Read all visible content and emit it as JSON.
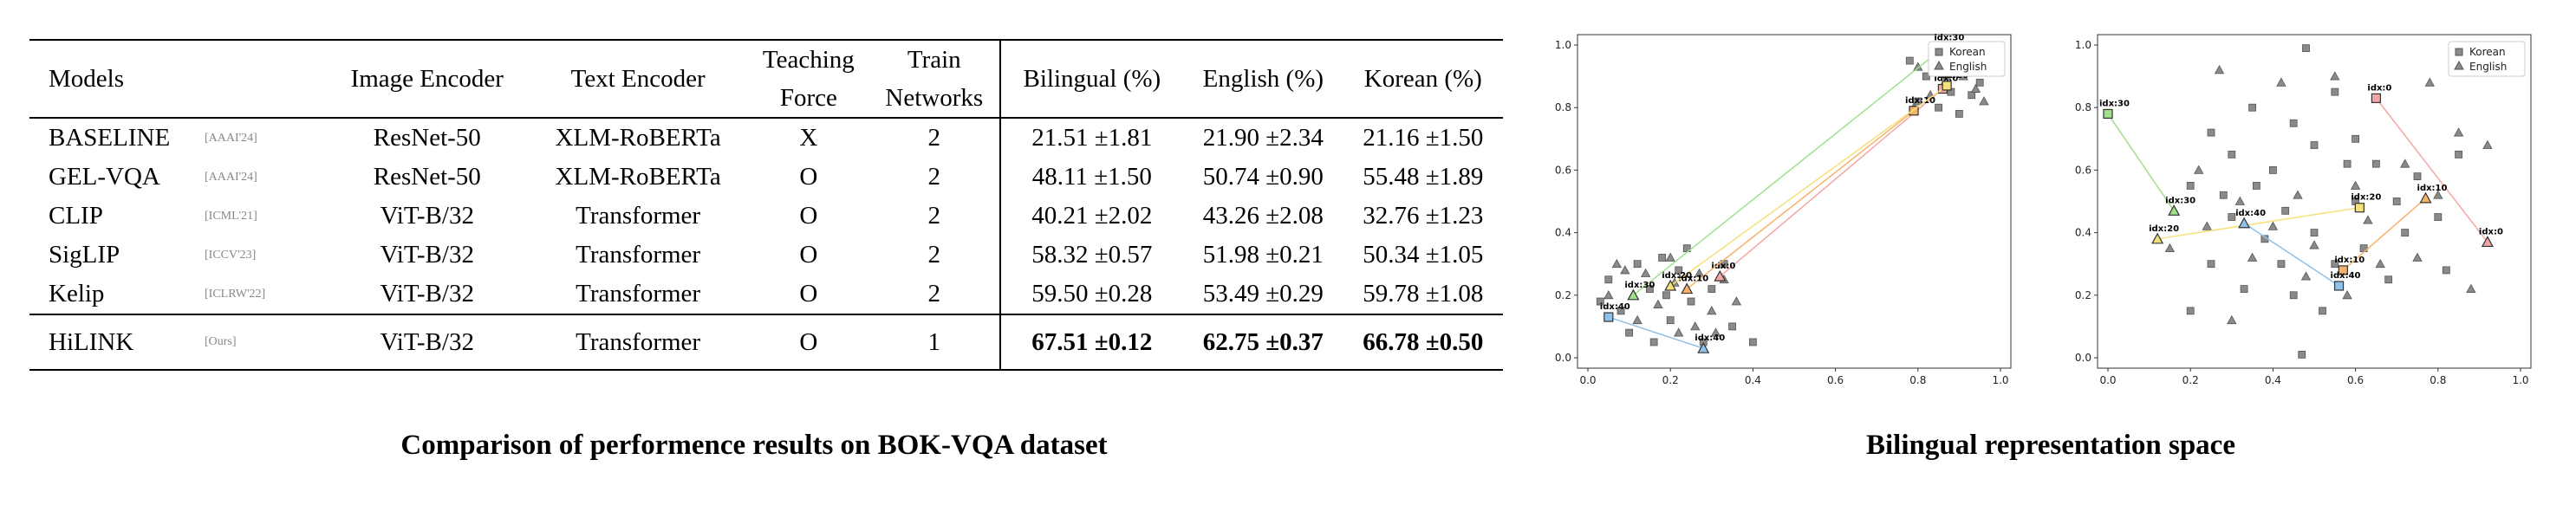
{
  "table": {
    "headers": {
      "models": "Models",
      "image_encoder": "Image Encoder",
      "text_encoder": "Text Encoder",
      "teaching_l1": "Teaching",
      "teaching_l2": "Force",
      "train_l1": "Train",
      "train_l2": "Networks",
      "bilingual": "Bilingual (%)",
      "english": "English (%)",
      "korean": "Korean (%)"
    },
    "rows": [
      {
        "model": "BASELINE",
        "venue": "[AAAI'24]",
        "image": "ResNet-50",
        "text": "XLM-RoBERTa",
        "teach": "X",
        "train": "2",
        "bi": "21.51 ±1.81",
        "en": "21.90 ±2.34",
        "ko": "21.16 ±1.50"
      },
      {
        "model": "GEL-VQA",
        "venue": "[AAAI'24]",
        "image": "ResNet-50",
        "text": "XLM-RoBERTa",
        "teach": "O",
        "train": "2",
        "bi": "48.11 ±1.50",
        "en": "50.74 ±0.90",
        "ko": "55.48 ±1.89"
      },
      {
        "model": "CLIP",
        "venue": "[ICML'21]",
        "image": "ViT-B/32",
        "text": "Transformer",
        "teach": "O",
        "train": "2",
        "bi": "40.21 ±2.02",
        "en": "43.26 ±2.08",
        "ko": "32.76 ±1.23"
      },
      {
        "model": "SigLIP",
        "venue": "[ICCV'23]",
        "image": "ViT-B/32",
        "text": "Transformer",
        "teach": "O",
        "train": "2",
        "bi": "58.32 ±0.57",
        "en": "51.98 ±0.21",
        "ko": "50.34 ±1.05"
      },
      {
        "model": "Kelip",
        "venue": "[ICLRW'22]",
        "image": "ViT-B/32",
        "text": "Transformer",
        "teach": "O",
        "train": "2",
        "bi": "59.50 ±0.28",
        "en": "53.49 ±0.29",
        "ko": "59.78 ±1.08"
      }
    ],
    "ours": {
      "model": "HiLINK",
      "venue": "[Ours]",
      "image": "ViT-B/32",
      "text": "Transformer",
      "teach": "O",
      "train": "1",
      "bi": "67.51 ±0.12",
      "en": "62.75 ±0.37",
      "ko": "66.78 ±0.50"
    }
  },
  "captions": {
    "left": "Comparison of performence results on BOK-VQA dataset",
    "right": "Bilingual representation space"
  },
  "chart_data": [
    {
      "type": "scatter",
      "legend": [
        "Korean",
        "English"
      ],
      "legend_position": "top-right",
      "xlim": [
        0,
        1
      ],
      "ylim": [
        0,
        1
      ],
      "xticks": [
        "0.0",
        "0.2",
        "0.4",
        "0.6",
        "0.8",
        "1.0"
      ],
      "yticks": [
        "0.0",
        "0.2",
        "0.4",
        "0.6",
        "0.8",
        "1.0"
      ],
      "colors": {
        "marker": "#8a8a8a",
        "idx0": "#e74c3c",
        "idx10": "#f0a030",
        "idx20": "#e8d440",
        "idx30": "#7ac74f",
        "idx40": "#5a9bd5"
      },
      "korean": [
        [
          0.05,
          0.25
        ],
        [
          0.12,
          0.3
        ],
        [
          0.18,
          0.32
        ],
        [
          0.22,
          0.28
        ],
        [
          0.15,
          0.22
        ],
        [
          0.08,
          0.15
        ],
        [
          0.25,
          0.18
        ],
        [
          0.3,
          0.22
        ],
        [
          0.1,
          0.08
        ],
        [
          0.2,
          0.12
        ],
        [
          0.28,
          0.05
        ],
        [
          0.35,
          0.1
        ],
        [
          0.4,
          0.05
        ],
        [
          0.03,
          0.18
        ],
        [
          0.16,
          0.05
        ],
        [
          0.24,
          0.35
        ],
        [
          0.33,
          0.3
        ],
        [
          0.19,
          0.2
        ],
        [
          0.78,
          0.95
        ],
        [
          0.82,
          0.9
        ],
        [
          0.88,
          0.85
        ],
        [
          0.92,
          0.93
        ],
        [
          0.85,
          0.8
        ],
        [
          0.95,
          0.88
        ],
        [
          0.8,
          0.82
        ],
        [
          0.9,
          0.78
        ],
        [
          0.98,
          0.92
        ],
        [
          0.84,
          0.96
        ],
        [
          0.93,
          0.84
        ],
        [
          0.87,
          0.9
        ]
      ],
      "english": [
        [
          0.07,
          0.3
        ],
        [
          0.14,
          0.27
        ],
        [
          0.21,
          0.24
        ],
        [
          0.27,
          0.27
        ],
        [
          0.12,
          0.12
        ],
        [
          0.22,
          0.08
        ],
        [
          0.3,
          0.15
        ],
        [
          0.33,
          0.25
        ],
        [
          0.05,
          0.2
        ],
        [
          0.17,
          0.17
        ],
        [
          0.26,
          0.1
        ],
        [
          0.36,
          0.18
        ],
        [
          0.09,
          0.28
        ],
        [
          0.2,
          0.32
        ],
        [
          0.31,
          0.08
        ],
        [
          0.8,
          0.93
        ],
        [
          0.86,
          0.87
        ],
        [
          0.91,
          0.9
        ],
        [
          0.83,
          0.84
        ],
        [
          0.96,
          0.82
        ],
        [
          0.79,
          0.8
        ],
        [
          0.89,
          0.95
        ],
        [
          0.94,
          0.86
        ],
        [
          0.85,
          0.92
        ]
      ],
      "links": [
        {
          "label": "idx:0",
          "ko": [
            0.86,
            0.86
          ],
          "en": [
            0.32,
            0.26
          ],
          "color": "#f4a6a6"
        },
        {
          "label": "idx:10",
          "ko": [
            0.79,
            0.79
          ],
          "en": [
            0.24,
            0.22
          ],
          "color": "#f7b267"
        },
        {
          "label": "idx:20",
          "ko": [
            0.87,
            0.87
          ],
          "en": [
            0.2,
            0.23
          ],
          "color": "#f5e07a"
        },
        {
          "label": "idx:30",
          "ko": [
            0.86,
            0.99
          ],
          "en": [
            0.11,
            0.2
          ],
          "color": "#9fe08a"
        },
        {
          "label": "idx:40",
          "ko": [
            0.05,
            0.13
          ],
          "en": [
            0.28,
            0.03
          ],
          "color": "#8ec1ea"
        }
      ]
    },
    {
      "type": "scatter",
      "legend": [
        "Korean",
        "English"
      ],
      "legend_position": "top-right",
      "xlim": [
        0,
        1
      ],
      "ylim": [
        0,
        1
      ],
      "xticks": [
        "0.0",
        "0.2",
        "0.4",
        "0.6",
        "0.8",
        "1.0"
      ],
      "yticks": [
        "0.0",
        "0.2",
        "0.4",
        "0.6",
        "0.8",
        "1.0"
      ],
      "korean": [
        [
          0.2,
          0.55
        ],
        [
          0.25,
          0.72
        ],
        [
          0.3,
          0.65
        ],
        [
          0.35,
          0.8
        ],
        [
          0.4,
          0.6
        ],
        [
          0.45,
          0.75
        ],
        [
          0.5,
          0.68
        ],
        [
          0.55,
          0.85
        ],
        [
          0.6,
          0.7
        ],
        [
          0.65,
          0.62
        ],
        [
          0.7,
          0.5
        ],
        [
          0.75,
          0.58
        ],
        [
          0.8,
          0.45
        ],
        [
          0.85,
          0.65
        ],
        [
          0.3,
          0.45
        ],
        [
          0.38,
          0.38
        ],
        [
          0.42,
          0.3
        ],
        [
          0.5,
          0.4
        ],
        [
          0.55,
          0.3
        ],
        [
          0.62,
          0.35
        ],
        [
          0.68,
          0.25
        ],
        [
          0.25,
          0.3
        ],
        [
          0.33,
          0.22
        ],
        [
          0.45,
          0.2
        ],
        [
          0.52,
          0.15
        ],
        [
          0.6,
          0.5
        ],
        [
          0.2,
          0.15
        ],
        [
          0.28,
          0.52
        ],
        [
          0.48,
          0.99
        ],
        [
          0.47,
          0.01
        ],
        [
          0.36,
          0.55
        ],
        [
          0.43,
          0.47
        ],
        [
          0.58,
          0.62
        ],
        [
          0.72,
          0.4
        ],
        [
          0.82,
          0.28
        ]
      ],
      "english": [
        [
          0.27,
          0.92
        ],
        [
          0.42,
          0.88
        ],
        [
          0.55,
          0.9
        ],
        [
          0.78,
          0.88
        ],
        [
          0.22,
          0.6
        ],
        [
          0.32,
          0.5
        ],
        [
          0.46,
          0.52
        ],
        [
          0.6,
          0.55
        ],
        [
          0.72,
          0.62
        ],
        [
          0.85,
          0.72
        ],
        [
          0.92,
          0.68
        ],
        [
          0.35,
          0.32
        ],
        [
          0.4,
          0.42
        ],
        [
          0.5,
          0.36
        ],
        [
          0.63,
          0.44
        ],
        [
          0.75,
          0.32
        ],
        [
          0.3,
          0.12
        ],
        [
          0.48,
          0.26
        ],
        [
          0.58,
          0.2
        ],
        [
          0.15,
          0.35
        ],
        [
          0.24,
          0.42
        ],
        [
          0.66,
          0.3
        ],
        [
          0.8,
          0.52
        ],
        [
          0.88,
          0.22
        ]
      ],
      "links": [
        {
          "label": "idx:0",
          "ko": [
            0.65,
            0.83
          ],
          "en": [
            0.92,
            0.37
          ],
          "color": "#f4a6a6"
        },
        {
          "label": "idx:10",
          "ko": [
            0.57,
            0.28
          ],
          "en": [
            0.77,
            0.51
          ],
          "color": "#f7b267"
        },
        {
          "label": "idx:20",
          "ko": [
            0.61,
            0.48
          ],
          "en": [
            0.12,
            0.38
          ],
          "color": "#f5e07a"
        },
        {
          "label": "idx:30",
          "ko": [
            0.0,
            0.78
          ],
          "en": [
            0.16,
            0.47
          ],
          "color": "#9fe08a"
        },
        {
          "label": "idx:40",
          "ko": [
            0.56,
            0.23
          ],
          "en": [
            0.33,
            0.43
          ],
          "color": "#8ec1ea"
        }
      ]
    }
  ]
}
